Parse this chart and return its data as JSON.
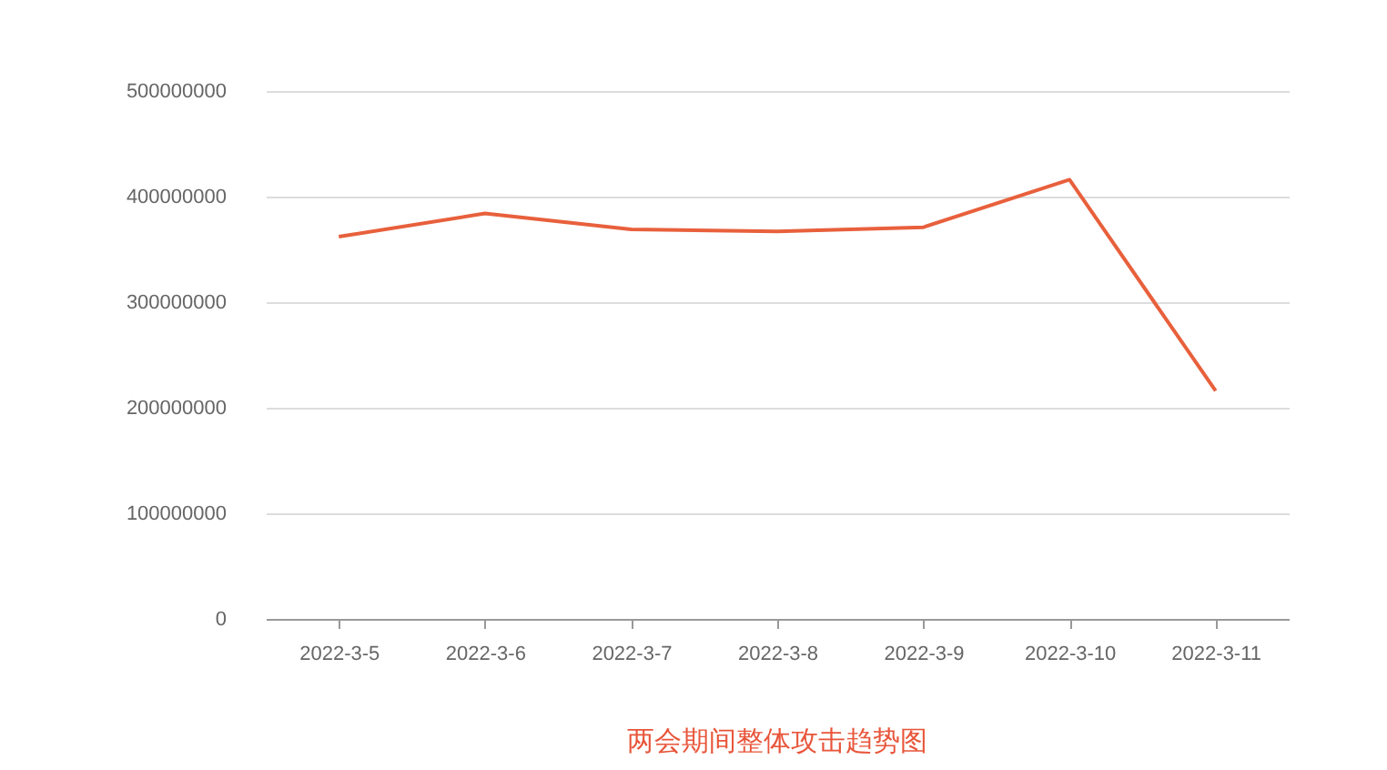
{
  "chart_data": {
    "type": "line",
    "title": "两会期间整体攻击趋势图",
    "categories": [
      "2022-3-5",
      "2022-3-6",
      "2022-3-7",
      "2022-3-8",
      "2022-3-9",
      "2022-3-10",
      "2022-3-11"
    ],
    "series": [
      {
        "color": "#e8603c",
        "values": [
          362000000,
          384000000,
          369000000,
          367000000,
          371000000,
          416000000,
          216000000
        ]
      }
    ],
    "ylim": [
      0,
      500000000
    ],
    "yticks": [
      0,
      100000000,
      200000000,
      300000000,
      400000000,
      500000000
    ],
    "grid": "y",
    "legend": false,
    "marker": "none",
    "line_style": "solid"
  }
}
